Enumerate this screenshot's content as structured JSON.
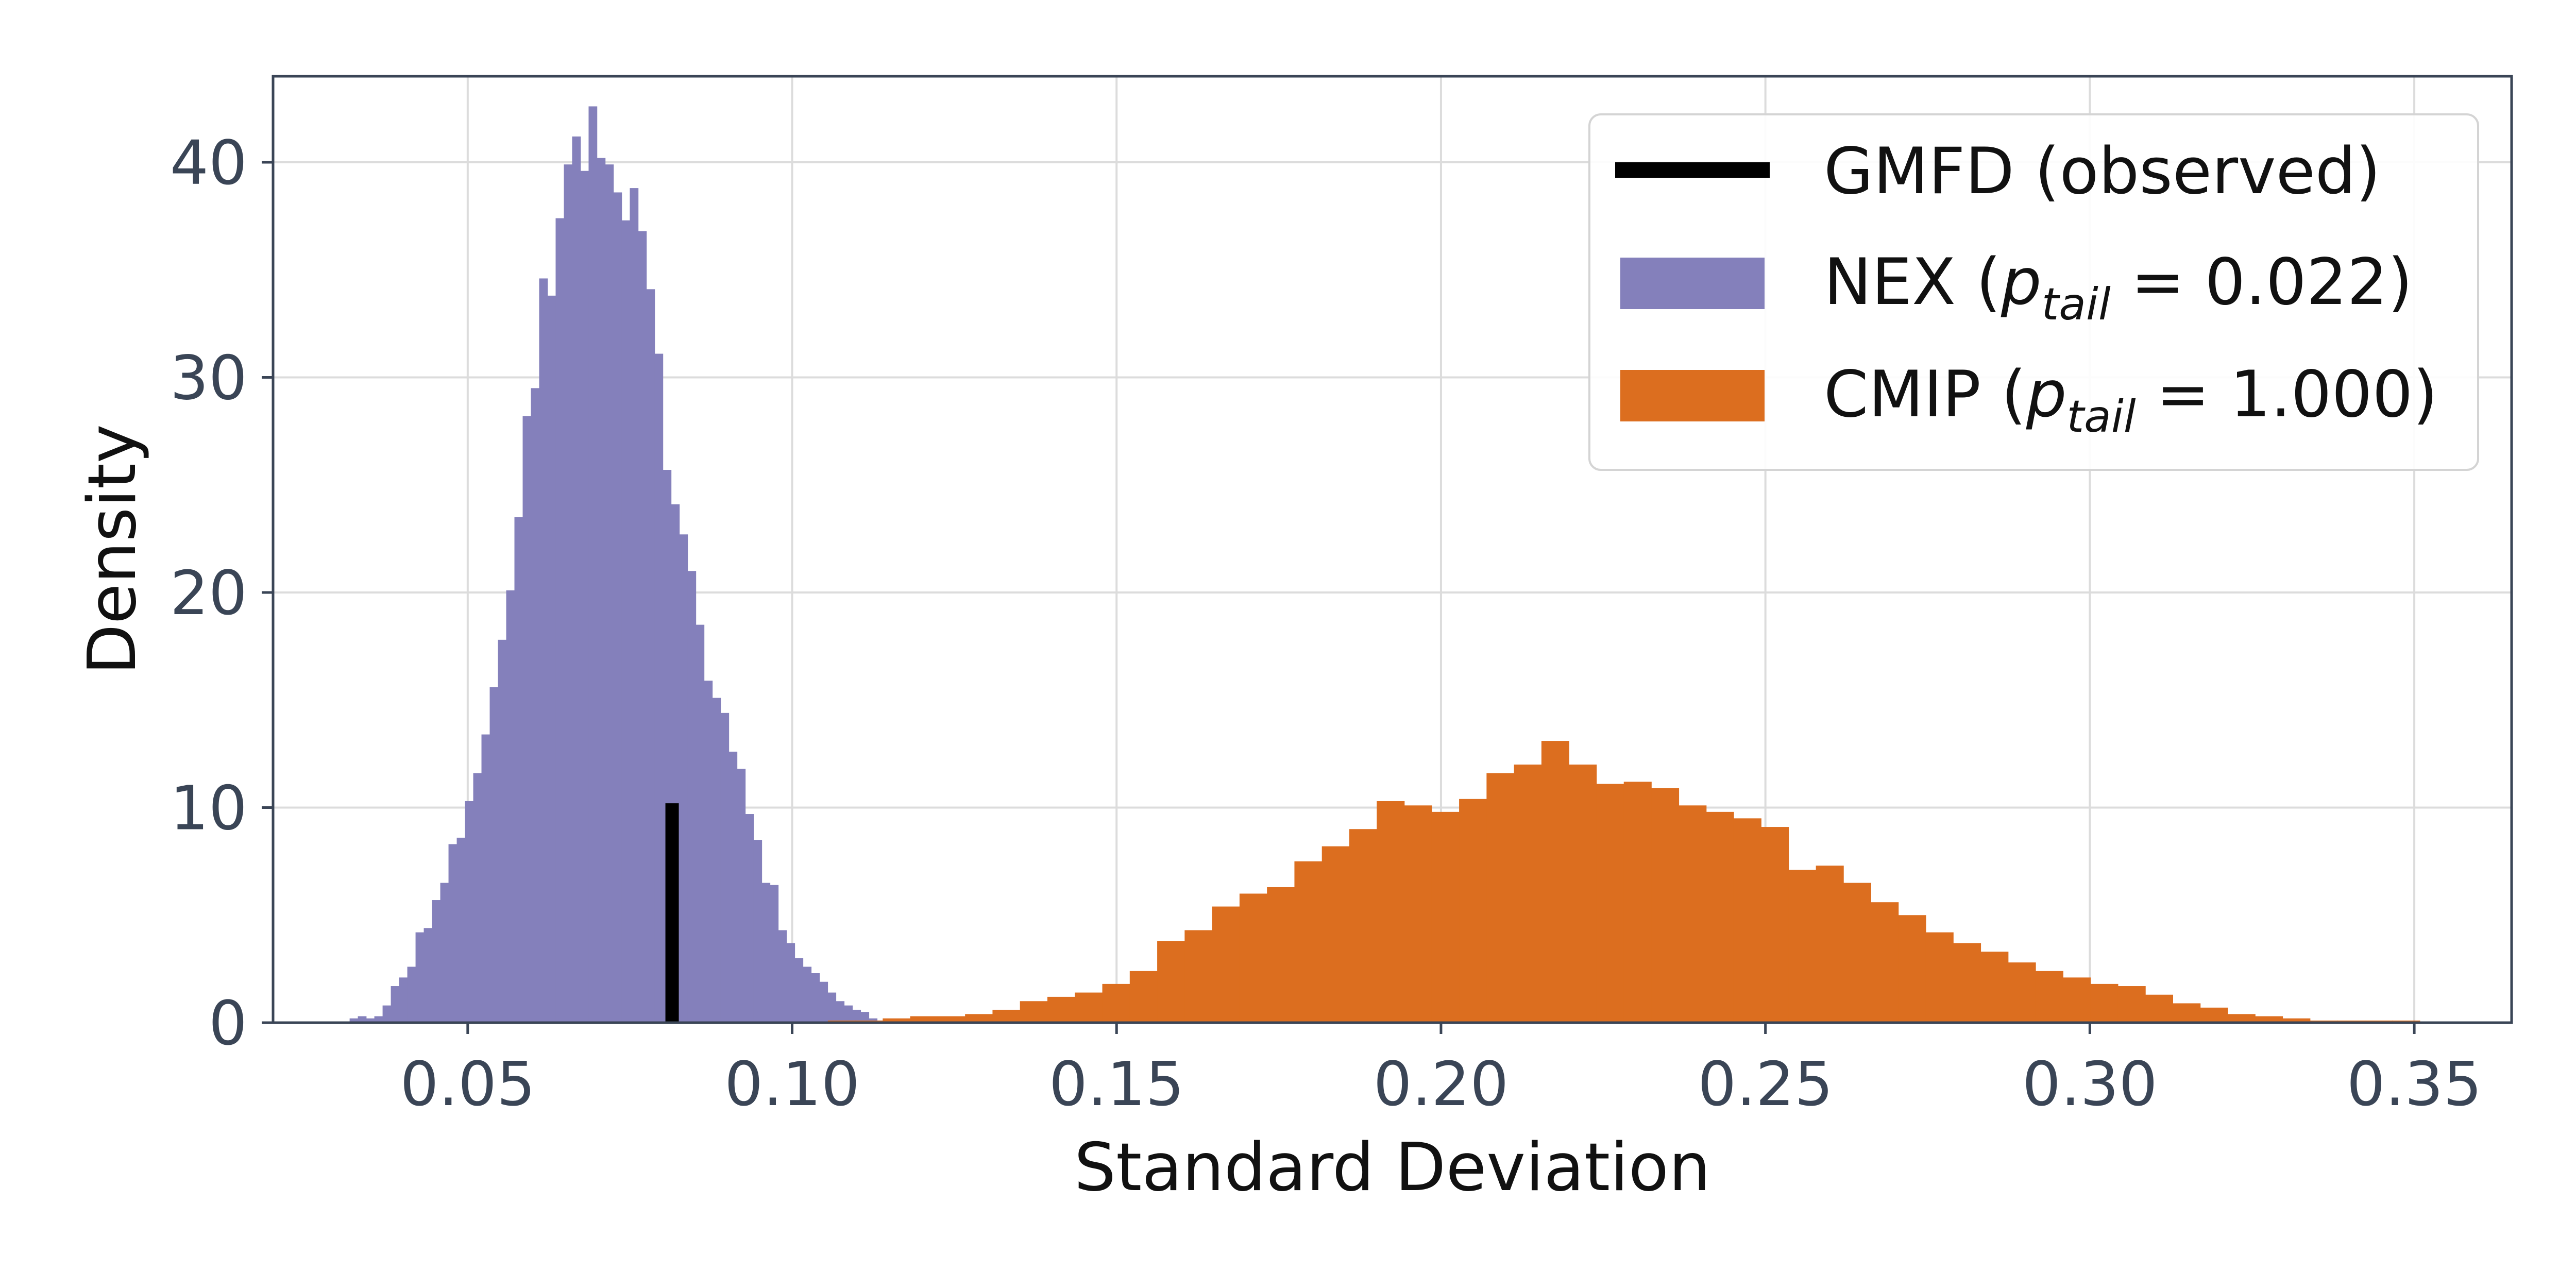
{
  "chart_data": {
    "type": "histogram",
    "xlabel": "Standard Deviation",
    "ylabel": "Density",
    "xlim": [
      0.02,
      0.365
    ],
    "ylim": [
      0,
      44
    ],
    "xticks": [
      "0.05",
      "0.10",
      "0.15",
      "0.20",
      "0.25",
      "0.30",
      "0.35"
    ],
    "xtick_values": [
      0.05,
      0.1,
      0.15,
      0.2,
      0.25,
      0.3,
      0.35
    ],
    "yticks": [
      "0",
      "10",
      "20",
      "30",
      "40"
    ],
    "ytick_values": [
      0,
      10,
      20,
      30,
      40
    ],
    "grid": true,
    "legend_position": "top-right",
    "colors": {
      "nex": "#8480bb",
      "cmip": "#dc6e1f",
      "observed": "#000000",
      "axes": "#3a4556"
    },
    "legend": {
      "observed": "GMFD (observed)",
      "nex_name": "NEX",
      "nex_p": "0.022",
      "cmip_name": "CMIP",
      "cmip_p": "1.000",
      "p_symbol": "p",
      "p_sub": "tail"
    },
    "observed": {
      "x": 0.0815,
      "height": 10.2,
      "label": "GMFD (observed)"
    },
    "series": [
      {
        "name": "NEX",
        "type": "histogram",
        "bin_start": 0.0318,
        "bin_width": 0.00127,
        "values": [
          0.2,
          0.3,
          0.2,
          0.3,
          0.8,
          1.7,
          2.1,
          2.6,
          4.2,
          4.4,
          5.7,
          6.5,
          8.3,
          8.6,
          10.3,
          11.6,
          13.4,
          15.6,
          17.8,
          20.1,
          23.5,
          28.2,
          29.5,
          34.6,
          33.8,
          37.4,
          39.9,
          41.2,
          39.6,
          42.6,
          40.2,
          39.9,
          38.6,
          37.3,
          38.8,
          36.8,
          34.1,
          31.1,
          25.7,
          24.1,
          22.7,
          21.0,
          18.5,
          15.9,
          15.1,
          14.4,
          12.6,
          11.8,
          9.7,
          8.5,
          6.5,
          6.4,
          4.3,
          3.7,
          3.0,
          2.6,
          2.3,
          1.9,
          1.4,
          1.0,
          0.8,
          0.6,
          0.5,
          0.2,
          0.1,
          0.1
        ]
      },
      {
        "name": "CMIP",
        "type": "histogram",
        "bin_start": 0.1055,
        "bin_width": 0.00423,
        "values": [
          0.1,
          0.1,
          0.2,
          0.3,
          0.3,
          0.4,
          0.6,
          1.0,
          1.2,
          1.4,
          1.8,
          2.4,
          3.8,
          4.3,
          5.4,
          6.0,
          6.3,
          7.5,
          8.2,
          9.0,
          10.3,
          10.1,
          9.8,
          10.4,
          11.6,
          12.0,
          13.1,
          12.0,
          11.1,
          11.2,
          10.9,
          10.1,
          9.8,
          9.5,
          9.1,
          7.1,
          7.3,
          6.5,
          5.6,
          5.0,
          4.2,
          3.7,
          3.3,
          2.8,
          2.4,
          2.1,
          1.8,
          1.7,
          1.3,
          0.9,
          0.7,
          0.4,
          0.3,
          0.2,
          0.1,
          0.1,
          0.1,
          0.1
        ]
      }
    ]
  }
}
